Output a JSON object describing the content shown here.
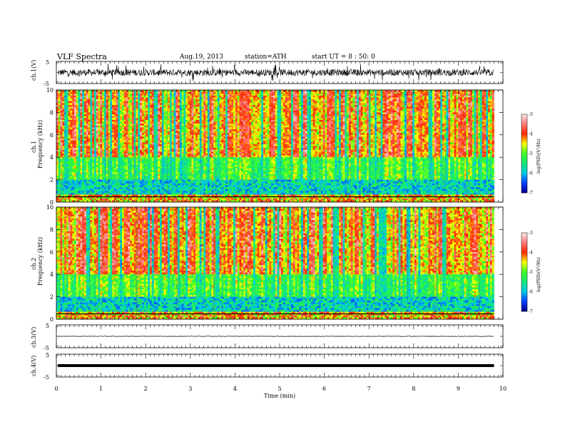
{
  "header": {
    "title": "VLF  Spectra",
    "date": "Aug.19, 2013",
    "station": "station=ATH",
    "start": "start  UT  =   8 : 50: 0"
  },
  "colors": {
    "spec_low": "#0000c0",
    "spec_mid": "#00e0e0",
    "spec_green": "#40ff40",
    "spec_yellow": "#ffff00",
    "spec_red": "#ff2000",
    "spec_high": "#ffffff"
  },
  "x_axis": {
    "label": "Time  (min)",
    "ticks": [
      "0",
      "1",
      "2",
      "3",
      "4",
      "5",
      "6",
      "7",
      "8",
      "9",
      "10"
    ]
  },
  "chart_data": [
    {
      "type": "line",
      "panel": "ch1",
      "ylabel": "ch.1(V)",
      "ylim": [
        -5,
        5
      ],
      "yticks": [
        "5",
        "-5"
      ],
      "xlim": [
        0,
        10
      ],
      "x_end": 9.8,
      "description_of_series": "noisy waveform around 0 V, amplitude about 1-2 V with spikes to ±4 V",
      "baseline": 0,
      "amplitude": 1.5
    },
    {
      "type": "heatmap",
      "panel": "ch1-spectrogram",
      "ylabel": "ch.1\nFrequency (kHz)",
      "ylabel_ch": "ch.1",
      "ylabel_freq": "Frequency  (kHz)",
      "ylim": [
        0,
        10
      ],
      "yticks": [
        "0",
        "2",
        "4",
        "6",
        "8",
        "10"
      ],
      "xlim": [
        0,
        10
      ],
      "x_end": 9.8,
      "colorbar": {
        "label": "log(PSD)(V²/Hz)",
        "range": [
          -7,
          -3
        ],
        "ticks": [
          "-3",
          "-4",
          "-5",
          "-6",
          "-7"
        ]
      }
    },
    {
      "type": "heatmap",
      "panel": "ch2-spectrogram",
      "ylabel_ch": "ch.2",
      "ylabel_freq": "Frequency  (kHz)",
      "ylim": [
        0,
        10
      ],
      "yticks": [
        "0",
        "2",
        "4",
        "6",
        "8",
        "10"
      ],
      "xlim": [
        0,
        10
      ],
      "x_end": 9.8,
      "colorbar": {
        "label": "log(PSD)(V²/Hz)",
        "range": [
          -7,
          -3
        ],
        "ticks": [
          "-3",
          "-4",
          "-5",
          "-6",
          "-7"
        ]
      }
    },
    {
      "type": "line",
      "panel": "ch3",
      "ylabel": "ch.3(V)",
      "ylim": [
        -5,
        5
      ],
      "yticks": [
        "5",
        "-5"
      ],
      "xlim": [
        0,
        10
      ],
      "x_end": 9.8,
      "baseline": 0,
      "amplitude": 0.1
    },
    {
      "type": "line",
      "panel": "ch4",
      "ylabel": "ch.4(V)",
      "ylim": [
        -5,
        5
      ],
      "yticks": [
        "5",
        "-5"
      ],
      "xlim": [
        0,
        10
      ],
      "x_end": 9.8,
      "baseline": 0,
      "amplitude": 0.3
    }
  ]
}
